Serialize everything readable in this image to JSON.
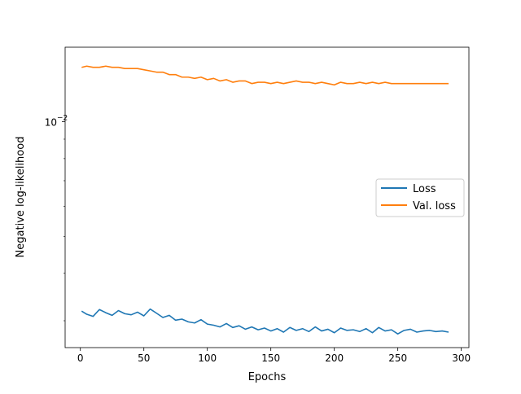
{
  "chart_data": {
    "type": "line",
    "title": "",
    "xlabel": "Epochs",
    "ylabel": "Negative log-likelihood",
    "yscale": "log",
    "xlim": [
      -12,
      306
    ],
    "ylim": [
      0.00255,
      0.0157
    ],
    "grid": false,
    "legend_position": "center-right",
    "x_ticks": [
      0,
      50,
      100,
      150,
      200,
      250,
      300
    ],
    "x_tick_labels": [
      "0",
      "50",
      "100",
      "150",
      "200",
      "250",
      "300"
    ],
    "y_ticks": [
      0.01
    ],
    "y_tick_labels": [
      "10",
      "−2"
    ],
    "series": [
      {
        "name": "Loss",
        "color": "#1f77b4",
        "x": [
          1,
          5,
          10,
          15,
          20,
          25,
          30,
          35,
          40,
          45,
          50,
          55,
          60,
          65,
          70,
          75,
          80,
          85,
          90,
          95,
          100,
          105,
          110,
          115,
          120,
          125,
          130,
          135,
          140,
          145,
          150,
          155,
          160,
          165,
          170,
          175,
          180,
          185,
          190,
          195,
          200,
          205,
          210,
          215,
          220,
          225,
          230,
          235,
          240,
          245,
          250,
          255,
          260,
          265,
          270,
          275,
          280,
          285,
          290
        ],
        "values": [
          0.00318,
          0.00312,
          0.00308,
          0.00321,
          0.00315,
          0.0031,
          0.00319,
          0.00313,
          0.00311,
          0.00316,
          0.00309,
          0.00322,
          0.00314,
          0.00306,
          0.0031,
          0.00301,
          0.00303,
          0.00298,
          0.00296,
          0.00302,
          0.00294,
          0.00292,
          0.00289,
          0.00295,
          0.00288,
          0.00291,
          0.00285,
          0.00289,
          0.00284,
          0.00287,
          0.00282,
          0.00286,
          0.0028,
          0.00288,
          0.00283,
          0.00286,
          0.00281,
          0.00289,
          0.00282,
          0.00285,
          0.00279,
          0.00287,
          0.00283,
          0.00284,
          0.00281,
          0.00286,
          0.00279,
          0.00288,
          0.00282,
          0.00284,
          0.00277,
          0.00283,
          0.00285,
          0.0028,
          0.00282,
          0.00283,
          0.00281,
          0.00282,
          0.0028
        ]
      },
      {
        "name": "Val. loss",
        "color": "#ff7f0e",
        "x": [
          1,
          5,
          10,
          15,
          20,
          25,
          30,
          35,
          40,
          45,
          50,
          55,
          60,
          65,
          70,
          75,
          80,
          85,
          90,
          95,
          100,
          105,
          110,
          115,
          120,
          125,
          130,
          135,
          140,
          145,
          150,
          155,
          160,
          165,
          170,
          175,
          180,
          185,
          190,
          195,
          200,
          205,
          210,
          215,
          220,
          225,
          230,
          235,
          240,
          245,
          250,
          255,
          260,
          265,
          270,
          275,
          280,
          285,
          290
        ],
        "values": [
          0.0139,
          0.014,
          0.0139,
          0.0139,
          0.014,
          0.0139,
          0.0139,
          0.0138,
          0.0138,
          0.0138,
          0.0137,
          0.0136,
          0.0135,
          0.0135,
          0.0133,
          0.0133,
          0.0131,
          0.0131,
          0.013,
          0.0131,
          0.0129,
          0.013,
          0.0128,
          0.0129,
          0.0127,
          0.0128,
          0.0128,
          0.0126,
          0.0127,
          0.0127,
          0.0126,
          0.0127,
          0.0126,
          0.0127,
          0.0128,
          0.0127,
          0.0127,
          0.0126,
          0.0127,
          0.0126,
          0.0125,
          0.0127,
          0.0126,
          0.0126,
          0.0127,
          0.0126,
          0.0127,
          0.0126,
          0.0127,
          0.0126,
          0.0126,
          0.0126,
          0.0126,
          0.0126,
          0.0126,
          0.0126,
          0.0126,
          0.0126,
          0.0126
        ]
      }
    ]
  }
}
